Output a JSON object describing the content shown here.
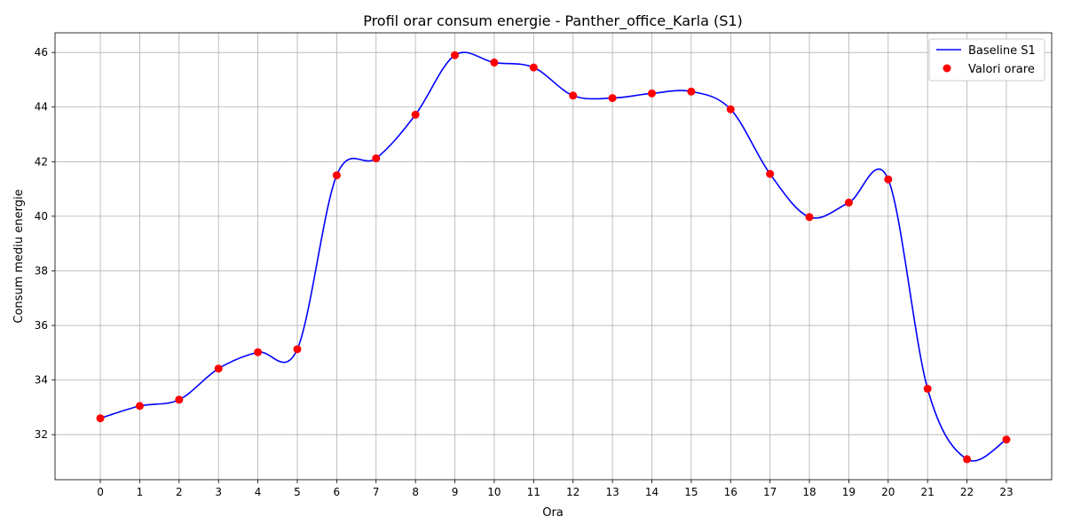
{
  "chart_data": {
    "type": "line",
    "title": "Profil orar consum energie - Panther_office_Karla (S1)",
    "xlabel": "Ora",
    "ylabel": "Consum mediu energie",
    "x": [
      0,
      1,
      2,
      3,
      4,
      5,
      6,
      7,
      8,
      9,
      10,
      11,
      12,
      13,
      14,
      15,
      16,
      17,
      18,
      19,
      20,
      21,
      22,
      23
    ],
    "x_ticks": [
      "0",
      "1",
      "2",
      "3",
      "4",
      "5",
      "6",
      "7",
      "8",
      "9",
      "10",
      "11",
      "12",
      "13",
      "14",
      "15",
      "16",
      "17",
      "18",
      "19",
      "20",
      "21",
      "22",
      "23"
    ],
    "xlim": [
      -1.15,
      24.15
    ],
    "ylim": [
      30.35,
      46.72
    ],
    "y_ticks": [
      32,
      34,
      36,
      38,
      40,
      42,
      44,
      46
    ],
    "y_tick_labels": [
      "32",
      "34",
      "36",
      "38",
      "40",
      "42",
      "44",
      "46"
    ],
    "grid": true,
    "legend_position": "top-right",
    "series": [
      {
        "name": "Baseline S1",
        "kind": "line",
        "color": "#0000ff",
        "values": [
          32.6,
          33.05,
          33.28,
          34.42,
          35.02,
          35.13,
          41.5,
          42.12,
          43.72,
          45.9,
          45.63,
          45.45,
          44.42,
          44.33,
          44.5,
          44.57,
          43.92,
          41.55,
          39.97,
          40.5,
          41.35,
          33.68,
          31.1,
          31.82
        ]
      },
      {
        "name": "Valori orare",
        "kind": "scatter",
        "color": "#ff0000",
        "values": [
          32.6,
          33.05,
          33.28,
          34.42,
          35.02,
          35.13,
          41.5,
          42.12,
          43.72,
          45.9,
          45.63,
          45.45,
          44.42,
          44.33,
          44.5,
          44.57,
          43.92,
          41.55,
          39.97,
          40.5,
          41.35,
          33.68,
          31.1,
          31.82
        ]
      }
    ]
  }
}
